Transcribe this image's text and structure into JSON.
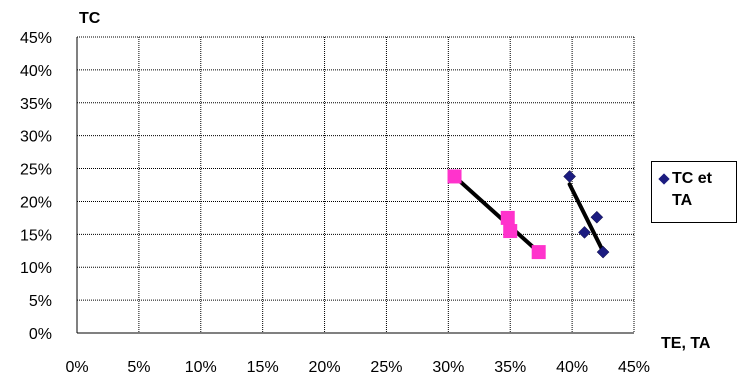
{
  "chart_data": {
    "type": "scatter",
    "ylabel": "TC",
    "xlabel": "TE, TA",
    "xlim": [
      0,
      45
    ],
    "ylim": [
      0,
      45
    ],
    "x_ticks": [
      "0%",
      "5%",
      "10%",
      "15%",
      "20%",
      "25%",
      "30%",
      "35%",
      "40%",
      "45%"
    ],
    "y_ticks": [
      "0%",
      "5%",
      "10%",
      "15%",
      "20%",
      "25%",
      "30%",
      "35%",
      "40%",
      "45%"
    ],
    "grid": true,
    "legend_position": "right",
    "series": [
      {
        "marker": "square",
        "color": "#ff33cc",
        "points": [
          [
            30.5,
            23.8
          ],
          [
            34.8,
            17.5
          ],
          [
            35.0,
            15.5
          ],
          [
            37.3,
            12.3
          ]
        ],
        "trend": [
          [
            30.5,
            23.8
          ],
          [
            37.3,
            12.3
          ]
        ]
      },
      {
        "name": "TC et TA",
        "marker": "diamond",
        "color": "#1c1c80",
        "points": [
          [
            39.8,
            23.8
          ],
          [
            41.0,
            15.3
          ],
          [
            42.0,
            17.6
          ],
          [
            42.5,
            12.3
          ]
        ],
        "trend": [
          [
            39.8,
            22.6
          ],
          [
            42.4,
            12.8
          ]
        ]
      }
    ],
    "trend_color": "#000000"
  }
}
